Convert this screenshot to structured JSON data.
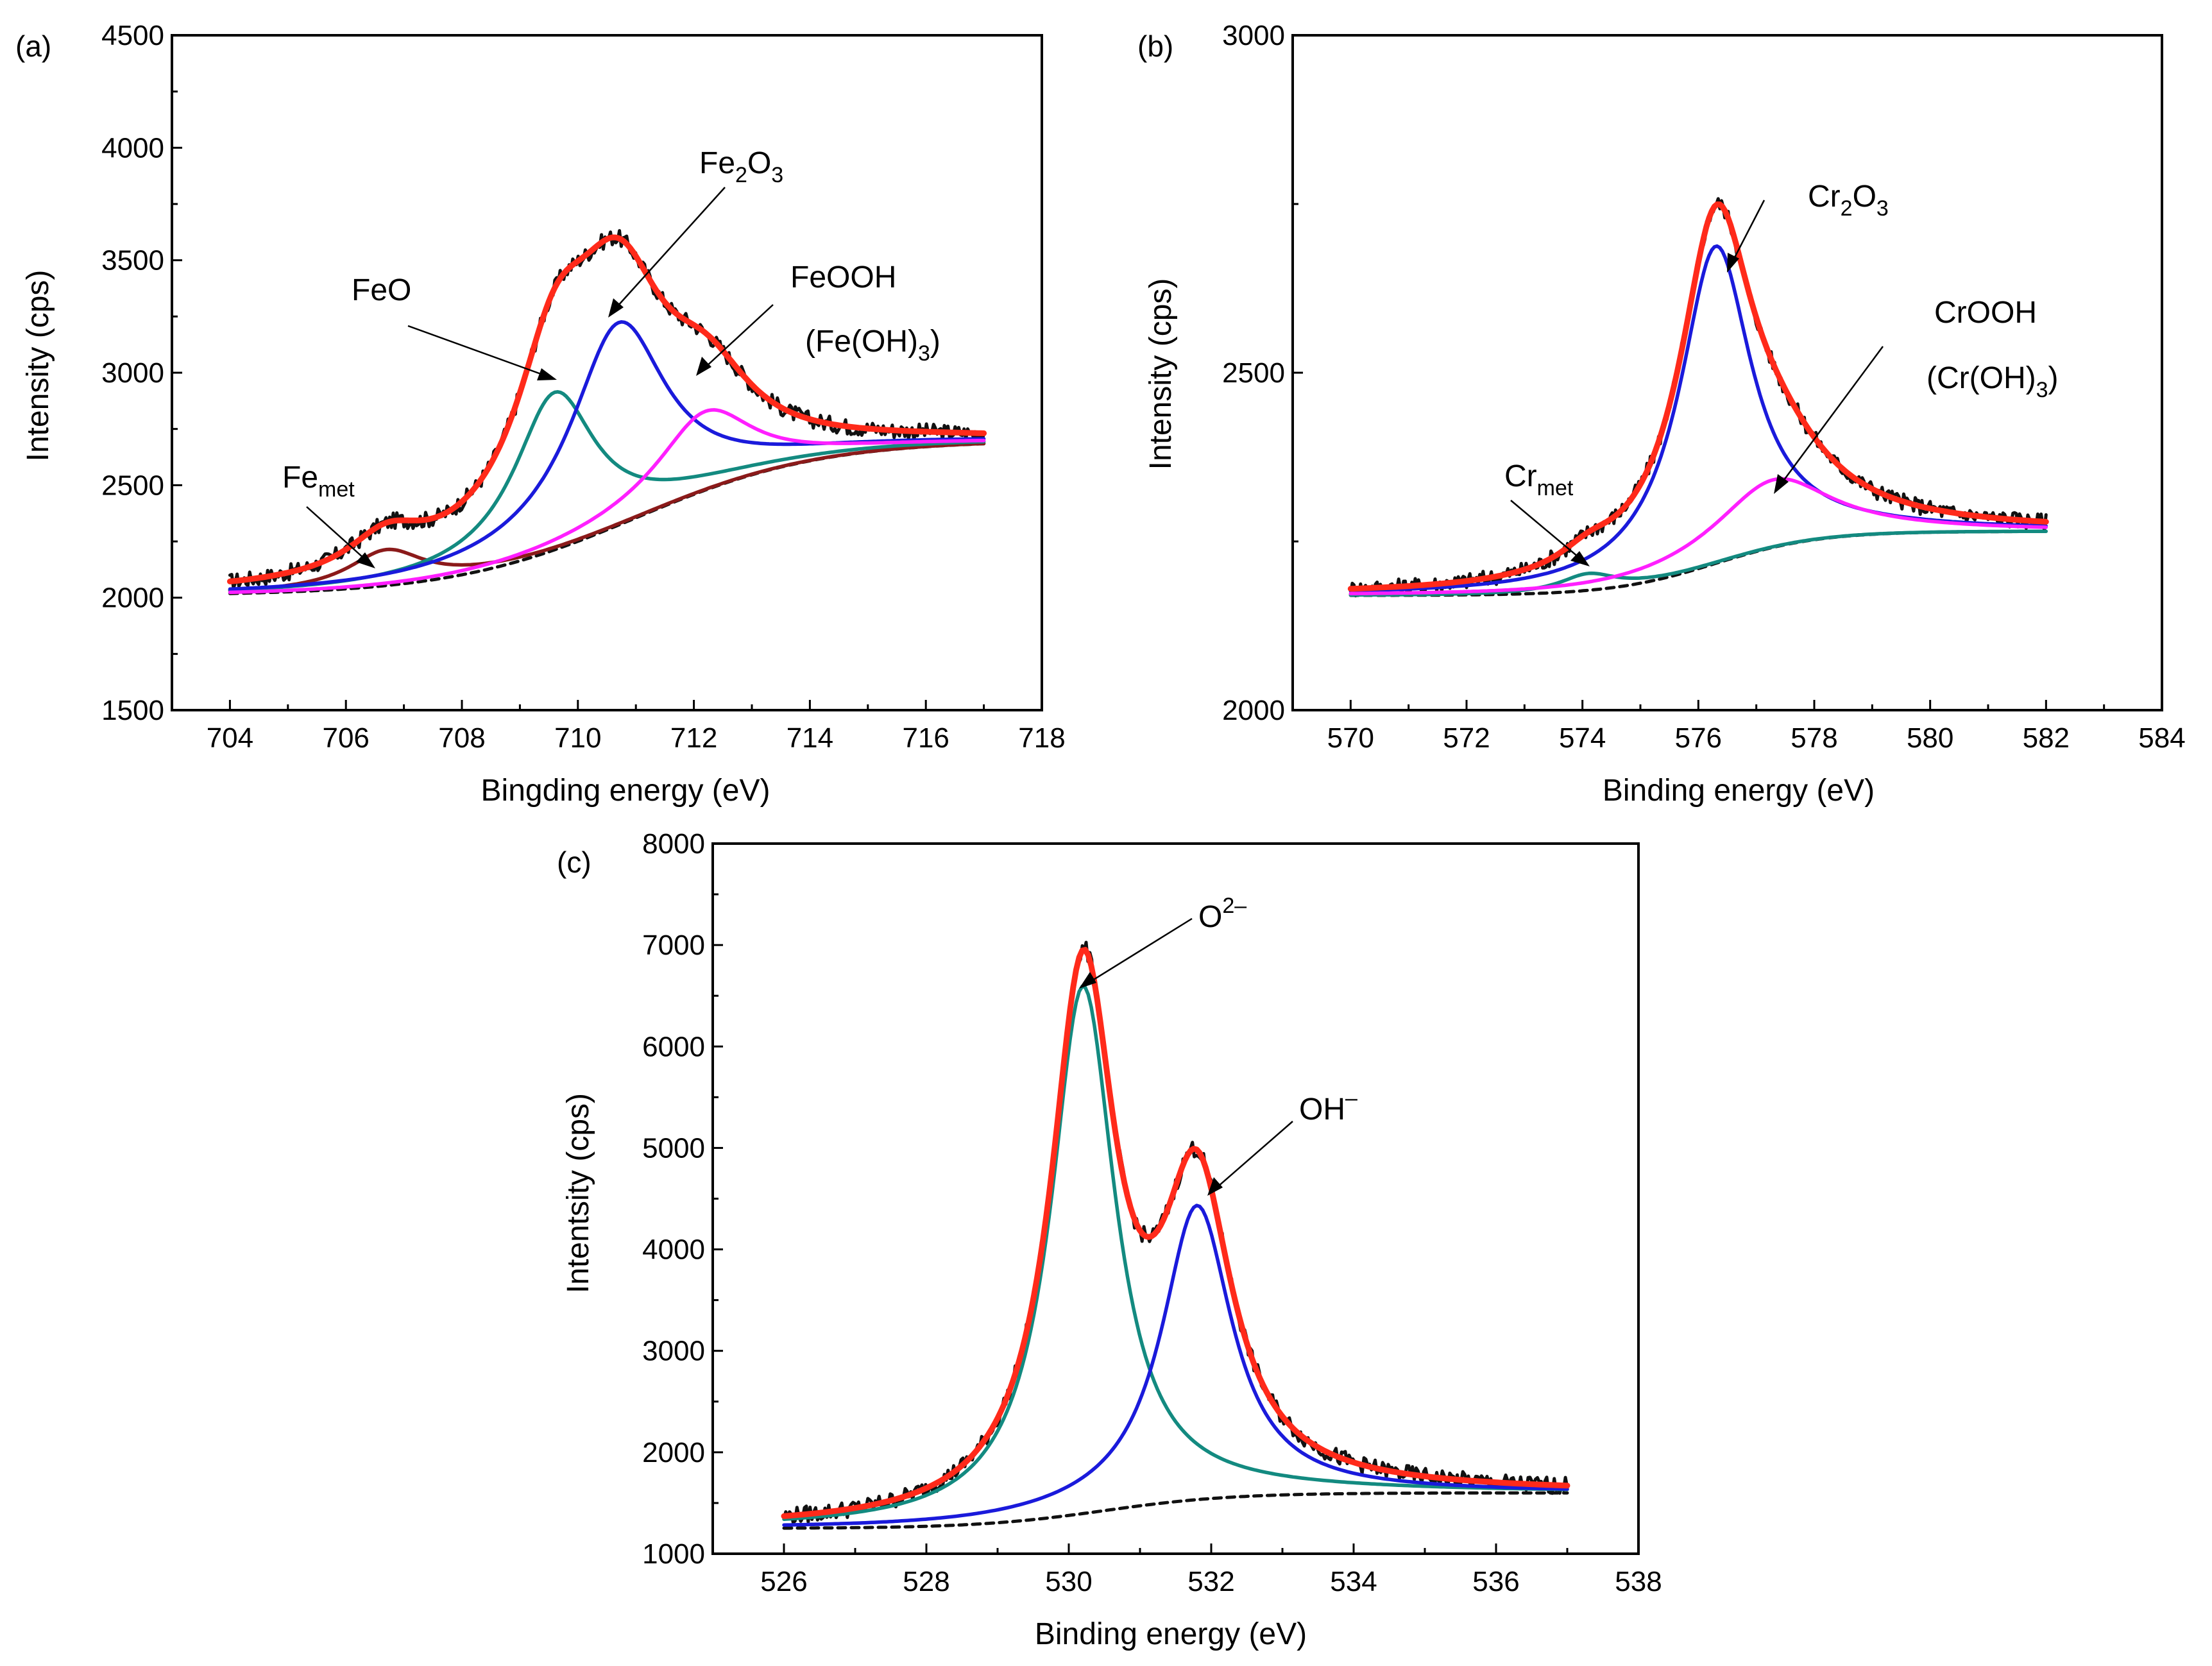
{
  "colors": {
    "raw": "#111111",
    "fit": "#ff2a1a",
    "background": "#111111",
    "teal": "#138a80",
    "blue": "#1a1adb",
    "magenta": "#ff1fff",
    "brown": "#8b1a1a"
  },
  "chart_data": [
    {
      "id": "a",
      "type": "line",
      "panel_label": "(a)",
      "xlabel": "Bingding energy (eV)",
      "ylabel": "Intensity (cps)",
      "xlim": [
        703,
        718
      ],
      "ylim": [
        1500,
        4500
      ],
      "xticks": [
        704,
        706,
        708,
        710,
        712,
        714,
        716,
        718
      ],
      "yticks": [
        1500,
        2000,
        2500,
        3000,
        3500,
        4000,
        4500
      ],
      "x_range": [
        704,
        717
      ],
      "baseline": {
        "start": 2010,
        "end": 2700,
        "center": 711,
        "width": 1.6
      },
      "components": [
        {
          "name": "Fe_met",
          "label_main": "Fe",
          "label_sub": "met",
          "center": 706.7,
          "amplitude": 160,
          "width": 0.8
        },
        {
          "name": "FeO",
          "label_main": "FeO",
          "label_sub": "",
          "center": 709.6,
          "amplitude": 700,
          "width": 0.85
        },
        {
          "name": "Fe2O3",
          "label_main": "Fe",
          "label_sub": "2",
          "label_main2": "O",
          "label_sub2": "3",
          "center": 710.7,
          "amplitude": 900,
          "width": 1.0
        },
        {
          "name": "FeOOH (Fe(OH)3)",
          "label_main": "FeOOH",
          "label_line2": "(Fe(OH)",
          "label_line2_sub": "3",
          "label_line2_end": ")",
          "center": 712.2,
          "amplitude": 350,
          "width": 1.0
        }
      ],
      "series": [
        {
          "name": "raw data",
          "color_key": "raw"
        },
        {
          "name": "fit envelope",
          "color_key": "fit"
        },
        {
          "name": "background",
          "color_key": "background",
          "dashed": true
        },
        {
          "name": "Fe_met component",
          "color_key": "brown"
        },
        {
          "name": "FeO component",
          "color_key": "teal"
        },
        {
          "name": "Fe2O3 component",
          "color_key": "blue"
        },
        {
          "name": "FeOOH component",
          "color_key": "magenta"
        }
      ]
    },
    {
      "id": "b",
      "type": "line",
      "panel_label": "(b)",
      "xlabel": "Binding energy (eV)",
      "ylabel": "Intensity (cps)",
      "xlim": [
        569,
        584
      ],
      "ylim": [
        2000,
        3000
      ],
      "xticks": [
        570,
        572,
        574,
        576,
        578,
        580,
        582,
        584
      ],
      "yticks": [
        2000,
        2500,
        3000
      ],
      "x_range": [
        570,
        582
      ],
      "baseline": {
        "start": 2170,
        "end": 2265,
        "center": 576.3,
        "width": 0.9
      },
      "components": [
        {
          "name": "Cr_met",
          "label_main": "Cr",
          "label_sub": "met",
          "center": 574.1,
          "amplitude": 25,
          "width": 0.6
        },
        {
          "name": "Cr2O3",
          "label_main": "Cr",
          "label_sub": "2",
          "label_main2": "O",
          "label_sub2": "3",
          "center": 576.3,
          "amplitude": 470,
          "width": 0.75
        },
        {
          "name": "CrOOH (Cr(OH)3)",
          "label_main": "CrOOH",
          "label_line2": "(Cr(OH)",
          "label_line2_sub": "3",
          "label_line2_end": ")",
          "center": 577.3,
          "amplitude": 100,
          "width": 1.2
        }
      ],
      "series": [
        {
          "name": "raw data",
          "color_key": "raw"
        },
        {
          "name": "fit envelope",
          "color_key": "fit"
        },
        {
          "name": "background",
          "color_key": "background",
          "dashed": true
        },
        {
          "name": "Cr_met component",
          "color_key": "teal"
        },
        {
          "name": "Cr2O3 component",
          "color_key": "blue"
        },
        {
          "name": "CrOOH component",
          "color_key": "magenta"
        }
      ]
    },
    {
      "id": "c",
      "type": "line",
      "panel_label": "(c)",
      "xlabel": "Binding energy (eV)",
      "ylabel": "Intentsity (cps)",
      "xlim": [
        525,
        538
      ],
      "ylim": [
        1000,
        8000
      ],
      "xticks": [
        526,
        528,
        530,
        532,
        534,
        536,
        538
      ],
      "yticks": [
        1000,
        2000,
        3000,
        4000,
        5000,
        6000,
        7000,
        8000
      ],
      "x_range": [
        526,
        537
      ],
      "baseline": {
        "start": 1250,
        "end": 1600,
        "center": 530.5,
        "width": 0.9
      },
      "components": [
        {
          "name": "O2-",
          "label_main": "O",
          "label_sup": "2–",
          "center": 530.2,
          "amplitude": 5200,
          "width": 0.55
        },
        {
          "name": "OH-",
          "label_main": "OH",
          "label_sup": "–",
          "center": 531.8,
          "amplitude": 2900,
          "width": 0.6
        }
      ],
      "series": [
        {
          "name": "raw data",
          "color_key": "raw"
        },
        {
          "name": "fit envelope",
          "color_key": "fit"
        },
        {
          "name": "background",
          "color_key": "background",
          "dashed": true
        },
        {
          "name": "O2- component",
          "color_key": "teal"
        },
        {
          "name": "OH- component",
          "color_key": "blue"
        }
      ]
    }
  ]
}
